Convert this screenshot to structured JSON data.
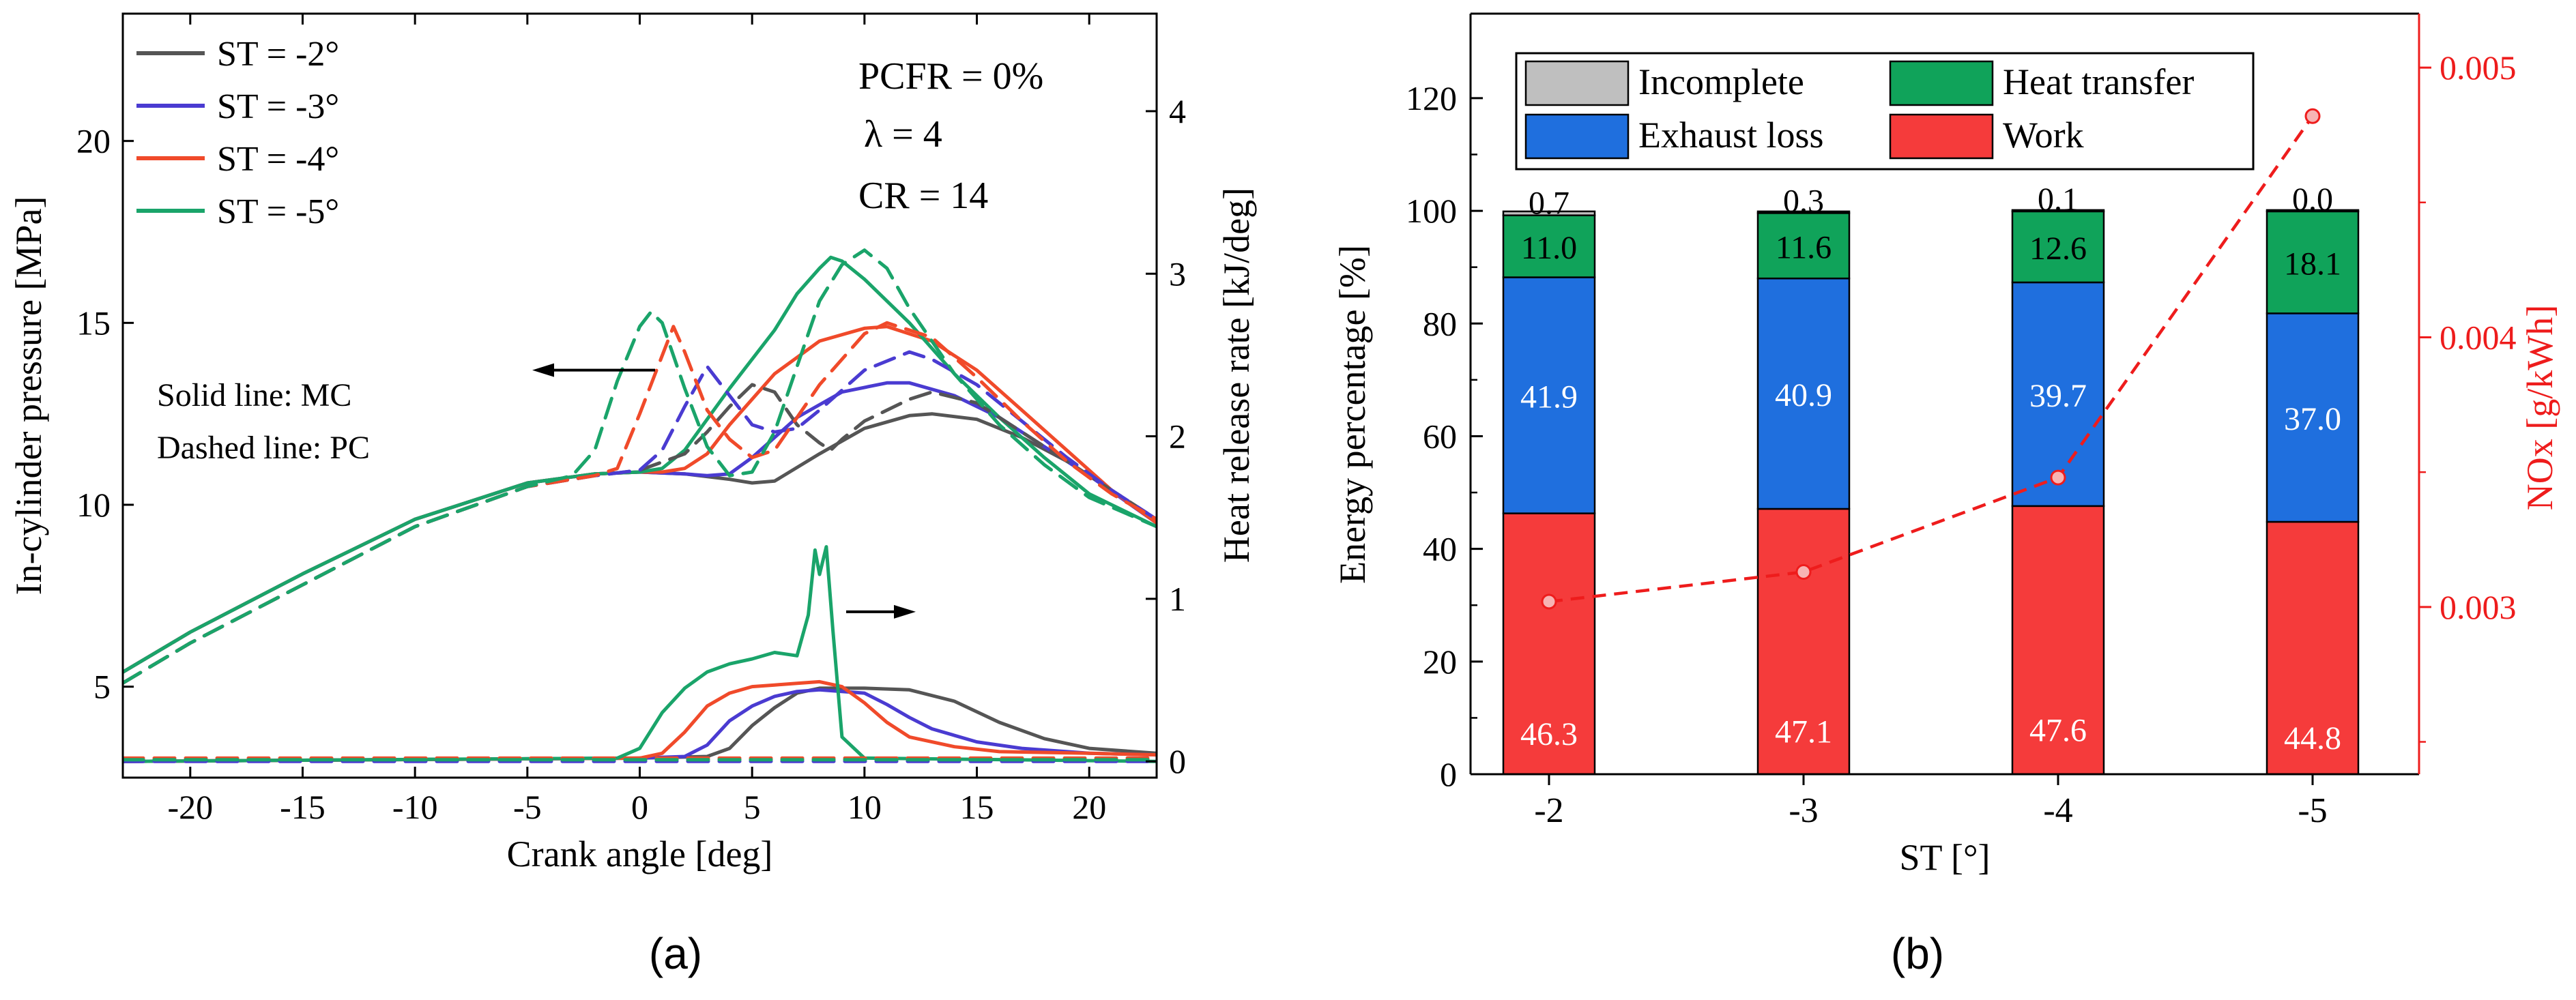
{
  "panels": {
    "a": {
      "label": "(a)"
    },
    "b": {
      "label": "(b)"
    }
  },
  "colors": {
    "st2": "#555555",
    "st3": "#4a3bd1",
    "st4": "#f04a2a",
    "st5": "#1aa46a",
    "incomplete": "#bfbfbf",
    "heat": "#10a35a",
    "exhaust": "#1f6fde",
    "work": "#f53b3b",
    "nox": "#ee1c1c"
  },
  "chart_data": [
    {
      "id": "a",
      "type": "line",
      "title": "",
      "xlabel": "Crank angle [deg]",
      "ylabel": "In-cylinder pressure [MPa]",
      "y2label": "Heat release rate [kJ/deg]",
      "xlim": [
        -23,
        23
      ],
      "ylim": [
        2.5,
        23.5
      ],
      "y2lim": [
        -0.1,
        4.6
      ],
      "xticks": [
        -20,
        -15,
        -10,
        -5,
        0,
        5,
        10,
        15,
        20
      ],
      "yticks": [
        5,
        10,
        15,
        20
      ],
      "y2ticks": [
        0,
        1,
        2,
        3,
        4
      ],
      "legend": [
        "ST = -2°",
        "ST = -3°",
        "ST = -4°",
        "ST = -5°"
      ],
      "annotations": {
        "pcfr": "PCFR = 0%",
        "lambda": "λ = 4",
        "cr": "CR = 14",
        "solid": "Solid line: MC",
        "dashed": "Dashed line: PC"
      },
      "series": [
        {
          "name": "ST = -2°",
          "color_key": "st2",
          "style": "solid",
          "axis": "pressure",
          "x": [
            -23,
            -20,
            -15,
            -10,
            -5,
            -2,
            0,
            2,
            4,
            5,
            6,
            8,
            10,
            12,
            13,
            15,
            17,
            19,
            21,
            23
          ],
          "y": [
            5.4,
            6.5,
            8.1,
            9.6,
            10.6,
            10.85,
            10.9,
            10.85,
            10.7,
            10.6,
            10.65,
            11.4,
            12.1,
            12.45,
            12.5,
            12.35,
            11.85,
            11.2,
            10.4,
            9.5
          ]
        },
        {
          "name": "ST = -3°",
          "color_key": "st3",
          "style": "solid",
          "axis": "pressure",
          "x": [
            -23,
            -20,
            -15,
            -10,
            -5,
            -2,
            0,
            2,
            3,
            4,
            5,
            7,
            9,
            11,
            12,
            14,
            16,
            18,
            20,
            23
          ],
          "y": [
            5.4,
            6.5,
            8.1,
            9.6,
            10.6,
            10.85,
            10.9,
            10.85,
            10.8,
            10.85,
            11.3,
            12.4,
            13.1,
            13.35,
            13.35,
            13.0,
            12.4,
            11.6,
            10.8,
            9.5
          ]
        },
        {
          "name": "ST = -4°",
          "color_key": "st4",
          "style": "solid",
          "axis": "pressure",
          "x": [
            -23,
            -20,
            -15,
            -10,
            -5,
            -2,
            0,
            1,
            2,
            3,
            4,
            6,
            8,
            10,
            11,
            13,
            15,
            17,
            19,
            21,
            23
          ],
          "y": [
            5.4,
            6.5,
            8.1,
            9.6,
            10.6,
            10.85,
            10.9,
            10.9,
            11.0,
            11.4,
            12.2,
            13.6,
            14.5,
            14.85,
            14.9,
            14.5,
            13.7,
            12.6,
            11.5,
            10.4,
            9.5
          ]
        },
        {
          "name": "ST = -5°",
          "color_key": "st5",
          "style": "solid",
          "axis": "pressure",
          "x": [
            -23,
            -20,
            -15,
            -10,
            -5,
            -2,
            0,
            1,
            2,
            4,
            6,
            7,
            8,
            8.5,
            9,
            10,
            12,
            14,
            16,
            18,
            20,
            23
          ],
          "y": [
            5.4,
            6.5,
            8.1,
            9.6,
            10.6,
            10.85,
            10.9,
            11.0,
            11.5,
            13.2,
            14.8,
            15.8,
            16.5,
            16.8,
            16.7,
            16.2,
            15.0,
            13.6,
            12.4,
            11.3,
            10.3,
            9.4
          ]
        },
        {
          "name": "ST = -2° (PC)",
          "color_key": "st2",
          "style": "dashed",
          "axis": "pressure",
          "x": [
            -23,
            -20,
            -15,
            -10,
            -5,
            -2,
            0,
            2,
            3,
            4,
            5,
            6,
            7,
            8,
            8.5,
            9,
            10,
            12,
            13,
            15,
            17,
            19,
            21,
            23
          ],
          "y": [
            5.1,
            6.2,
            7.8,
            9.4,
            10.5,
            10.8,
            10.95,
            11.4,
            12.0,
            12.7,
            13.3,
            13.1,
            12.2,
            11.7,
            11.5,
            11.8,
            12.3,
            12.9,
            13.1,
            12.8,
            12.0,
            11.2,
            10.4,
            9.6
          ]
        },
        {
          "name": "ST = -3° (PC)",
          "color_key": "st3",
          "style": "dashed",
          "axis": "pressure",
          "x": [
            -23,
            -20,
            -15,
            -10,
            -5,
            -2,
            0,
            1,
            2,
            3,
            4,
            5,
            6,
            7,
            8,
            10,
            12,
            13,
            15,
            17,
            19,
            21,
            23
          ],
          "y": [
            5.1,
            6.2,
            7.8,
            9.4,
            10.5,
            10.8,
            10.95,
            11.5,
            12.7,
            13.8,
            13.0,
            12.2,
            12.0,
            12.1,
            12.6,
            13.7,
            14.2,
            14.0,
            13.3,
            12.3,
            11.3,
            10.4,
            9.6
          ]
        },
        {
          "name": "ST = -4° (PC)",
          "color_key": "st4",
          "style": "dashed",
          "axis": "pressure",
          "x": [
            -23,
            -20,
            -15,
            -10,
            -5,
            -2,
            -1,
            0,
            1,
            1.5,
            2,
            3,
            4,
            5,
            6,
            8,
            10,
            11,
            13,
            15,
            17,
            19,
            21,
            23
          ],
          "y": [
            5.1,
            6.2,
            7.8,
            9.4,
            10.5,
            10.8,
            11.0,
            12.5,
            14.1,
            14.9,
            14.2,
            12.6,
            11.8,
            11.3,
            11.5,
            13.3,
            14.7,
            15.0,
            14.6,
            13.5,
            12.3,
            11.2,
            10.3,
            9.6
          ]
        },
        {
          "name": "ST = -5° (PC)",
          "color_key": "st5",
          "style": "dashed",
          "axis": "pressure",
          "x": [
            -23,
            -20,
            -15,
            -10,
            -5,
            -3,
            -2,
            -1,
            0,
            0.5,
            1,
            2,
            3,
            4,
            5,
            6,
            7,
            8,
            9,
            10,
            11,
            12,
            14,
            16,
            18,
            20,
            23
          ],
          "y": [
            5.1,
            6.2,
            7.8,
            9.4,
            10.5,
            10.8,
            11.5,
            13.4,
            14.9,
            15.3,
            15.0,
            13.2,
            11.6,
            10.8,
            10.9,
            12.0,
            13.8,
            15.6,
            16.6,
            17.0,
            16.5,
            15.4,
            13.6,
            12.2,
            11.1,
            10.2,
            9.4
          ]
        },
        {
          "name": "HRR ST = -2°",
          "color_key": "st2",
          "style": "solid",
          "axis": "hrr",
          "x": [
            -23,
            0,
            3,
            4,
            5,
            6,
            7,
            8,
            10,
            12,
            14,
            16,
            18,
            20,
            23
          ],
          "y": [
            0,
            0.02,
            0.03,
            0.08,
            0.22,
            0.33,
            0.42,
            0.45,
            0.45,
            0.44,
            0.37,
            0.24,
            0.14,
            0.08,
            0.05
          ]
        },
        {
          "name": "HRR ST = -3°",
          "color_key": "st3",
          "style": "solid",
          "axis": "hrr",
          "x": [
            -23,
            0,
            2,
            3,
            4,
            5,
            6,
            7,
            8,
            9,
            10,
            11,
            12,
            13,
            15,
            17,
            20,
            23
          ],
          "y": [
            0,
            0.02,
            0.03,
            0.1,
            0.25,
            0.34,
            0.4,
            0.43,
            0.44,
            0.43,
            0.42,
            0.35,
            0.27,
            0.2,
            0.12,
            0.08,
            0.05,
            0.04
          ]
        },
        {
          "name": "HRR ST = -4°",
          "color_key": "st4",
          "style": "solid",
          "axis": "hrr",
          "x": [
            -23,
            0,
            1,
            2,
            3,
            4,
            5,
            6,
            7,
            8,
            9,
            10,
            11,
            12,
            14,
            16,
            20,
            23
          ],
          "y": [
            0,
            0.02,
            0.05,
            0.18,
            0.34,
            0.42,
            0.46,
            0.47,
            0.48,
            0.49,
            0.46,
            0.36,
            0.24,
            0.15,
            0.09,
            0.06,
            0.05,
            0.04
          ]
        },
        {
          "name": "HRR ST = -5°",
          "color_key": "st5",
          "style": "solid",
          "axis": "hrr",
          "x": [
            -23,
            -1,
            0,
            1,
            2,
            3,
            4,
            5,
            6,
            7,
            7.5,
            7.8,
            8,
            8.3,
            8.6,
            9,
            10,
            23
          ],
          "y": [
            0,
            0.02,
            0.08,
            0.3,
            0.45,
            0.55,
            0.6,
            0.63,
            0.67,
            0.65,
            0.9,
            1.3,
            1.15,
            1.32,
            0.8,
            0.15,
            0.02,
            0
          ]
        },
        {
          "name": "HRR PC ST = -2°",
          "color_key": "st2",
          "style": "dashed",
          "axis": "hrr",
          "x": [
            -23,
            23
          ],
          "y": [
            0.01,
            0.01
          ]
        },
        {
          "name": "HRR PC ST = -3°",
          "color_key": "st3",
          "style": "dashed",
          "axis": "hrr",
          "x": [
            -23,
            23
          ],
          "y": [
            0.0,
            0.0
          ]
        },
        {
          "name": "HRR PC ST = -4°",
          "color_key": "st4",
          "style": "dashed",
          "axis": "hrr",
          "x": [
            -23,
            23
          ],
          "y": [
            0.02,
            0.02
          ]
        },
        {
          "name": "HRR PC ST = -5°",
          "color_key": "st5",
          "style": "dashed",
          "axis": "hrr",
          "x": [
            -23,
            23
          ],
          "y": [
            0.01,
            0.01
          ]
        }
      ]
    },
    {
      "id": "b",
      "type": "bar",
      "stacked": true,
      "title": "",
      "xlabel": "ST [°]",
      "ylabel": "Energy percentage [%]",
      "y2label": "NOx [g/kWh]",
      "categories": [
        "-2",
        "-3",
        "-4",
        "-5"
      ],
      "ylim": [
        0,
        135
      ],
      "yticks": [
        0,
        20,
        40,
        60,
        80,
        100,
        120
      ],
      "y2lim": [
        0.00238,
        0.0052
      ],
      "y2ticks": [
        0.003,
        0.004,
        0.005
      ],
      "y2tick_labels": [
        "0.003",
        "0.004",
        "0.005"
      ],
      "legend": [
        "Incomplete",
        "Heat transfer",
        "Exhaust loss",
        "Work"
      ],
      "series": [
        {
          "name": "Work",
          "color_key": "work",
          "values": [
            46.3,
            47.1,
            47.6,
            44.8
          ],
          "labels": [
            "46.3",
            "47.1",
            "47.6",
            "44.8"
          ]
        },
        {
          "name": "Exhaust loss",
          "color_key": "exhaust",
          "values": [
            41.9,
            40.9,
            39.7,
            37.0
          ],
          "labels": [
            "41.9",
            "40.9",
            "39.7",
            "37.0"
          ]
        },
        {
          "name": "Heat transfer",
          "color_key": "heat",
          "values": [
            11.0,
            11.6,
            12.6,
            18.1
          ],
          "labels": [
            "11.0",
            "11.6",
            "12.6",
            "18.1"
          ]
        },
        {
          "name": "Incomplete",
          "color_key": "incomplete",
          "values": [
            0.7,
            0.3,
            0.1,
            0.0
          ],
          "labels": [
            "0.7",
            "0.3",
            "0.1",
            "0.0"
          ]
        }
      ],
      "nox": {
        "name": "NOx",
        "values": [
          0.00302,
          0.00313,
          0.00348,
          0.00482
        ]
      }
    }
  ]
}
